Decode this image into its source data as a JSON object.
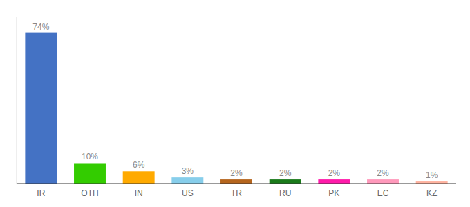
{
  "chart_data": {
    "type": "bar",
    "categories": [
      "IR",
      "OTH",
      "IN",
      "US",
      "TR",
      "RU",
      "PK",
      "EC",
      "KZ"
    ],
    "values": [
      74,
      10,
      6,
      3,
      2,
      2,
      2,
      2,
      1
    ],
    "value_labels": [
      "74%",
      "10%",
      "6%",
      "3%",
      "2%",
      "2%",
      "2%",
      "2%",
      "1%"
    ],
    "colors": [
      "#4472c4",
      "#33cc00",
      "#ffaa00",
      "#87ceeb",
      "#b5651d",
      "#1a7a1a",
      "#ff1aaa",
      "#ff99bb",
      "#ffb3a0"
    ],
    "ylim": [
      0,
      82
    ],
    "data_labels": true,
    "tick_labels": "x"
  }
}
